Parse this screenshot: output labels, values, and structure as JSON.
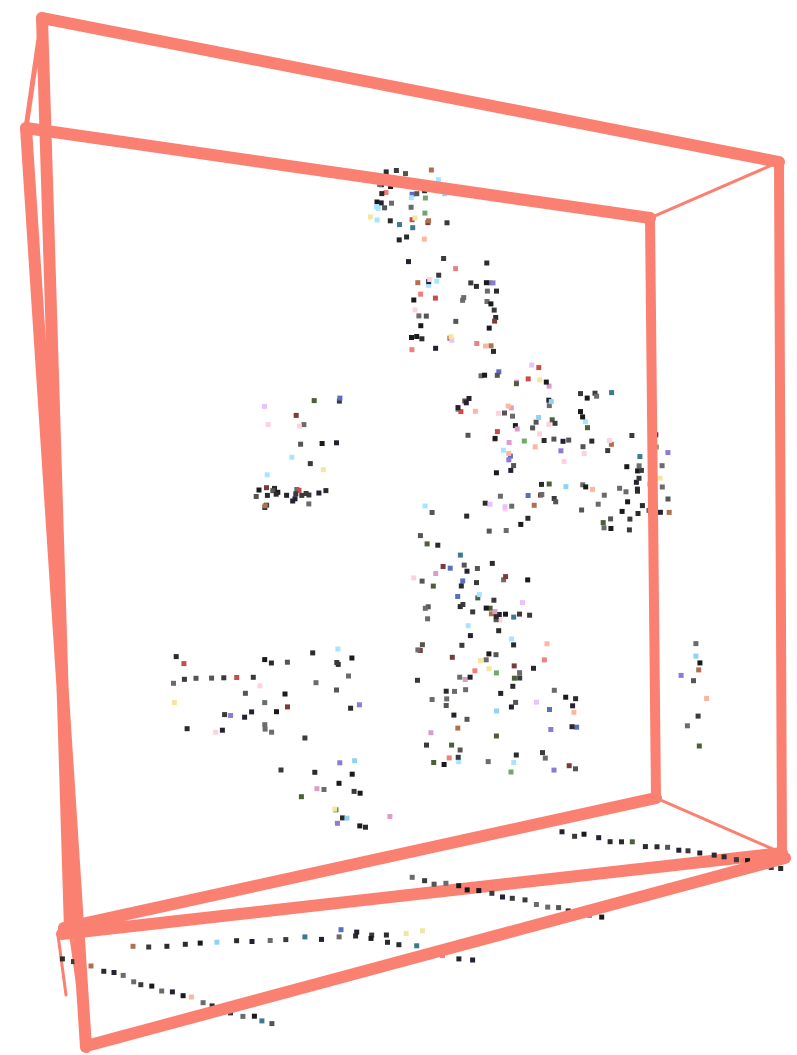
{
  "scene": {
    "description_label": "",
    "colors": {
      "box_edge": "#FA8072",
      "background": "#FFFFFF",
      "dark_point": "#1A1A1A"
    },
    "point_palette": [
      "#1A1A1A",
      "#222233",
      "#2B2B2B",
      "#3A3A3A",
      "#555555",
      "#6B6B6B",
      "#8FD3F4",
      "#A9E4FF",
      "#F08080",
      "#FFB6A0",
      "#FFD1DC",
      "#E6C3FF",
      "#C94C4C",
      "#7A3B3B",
      "#4B5F3A",
      "#6FA86F",
      "#3E7A8C",
      "#5B6FBF",
      "#8C7AD6",
      "#F2E6A0",
      "#D8A0C8",
      "#B07050"
    ]
  }
}
